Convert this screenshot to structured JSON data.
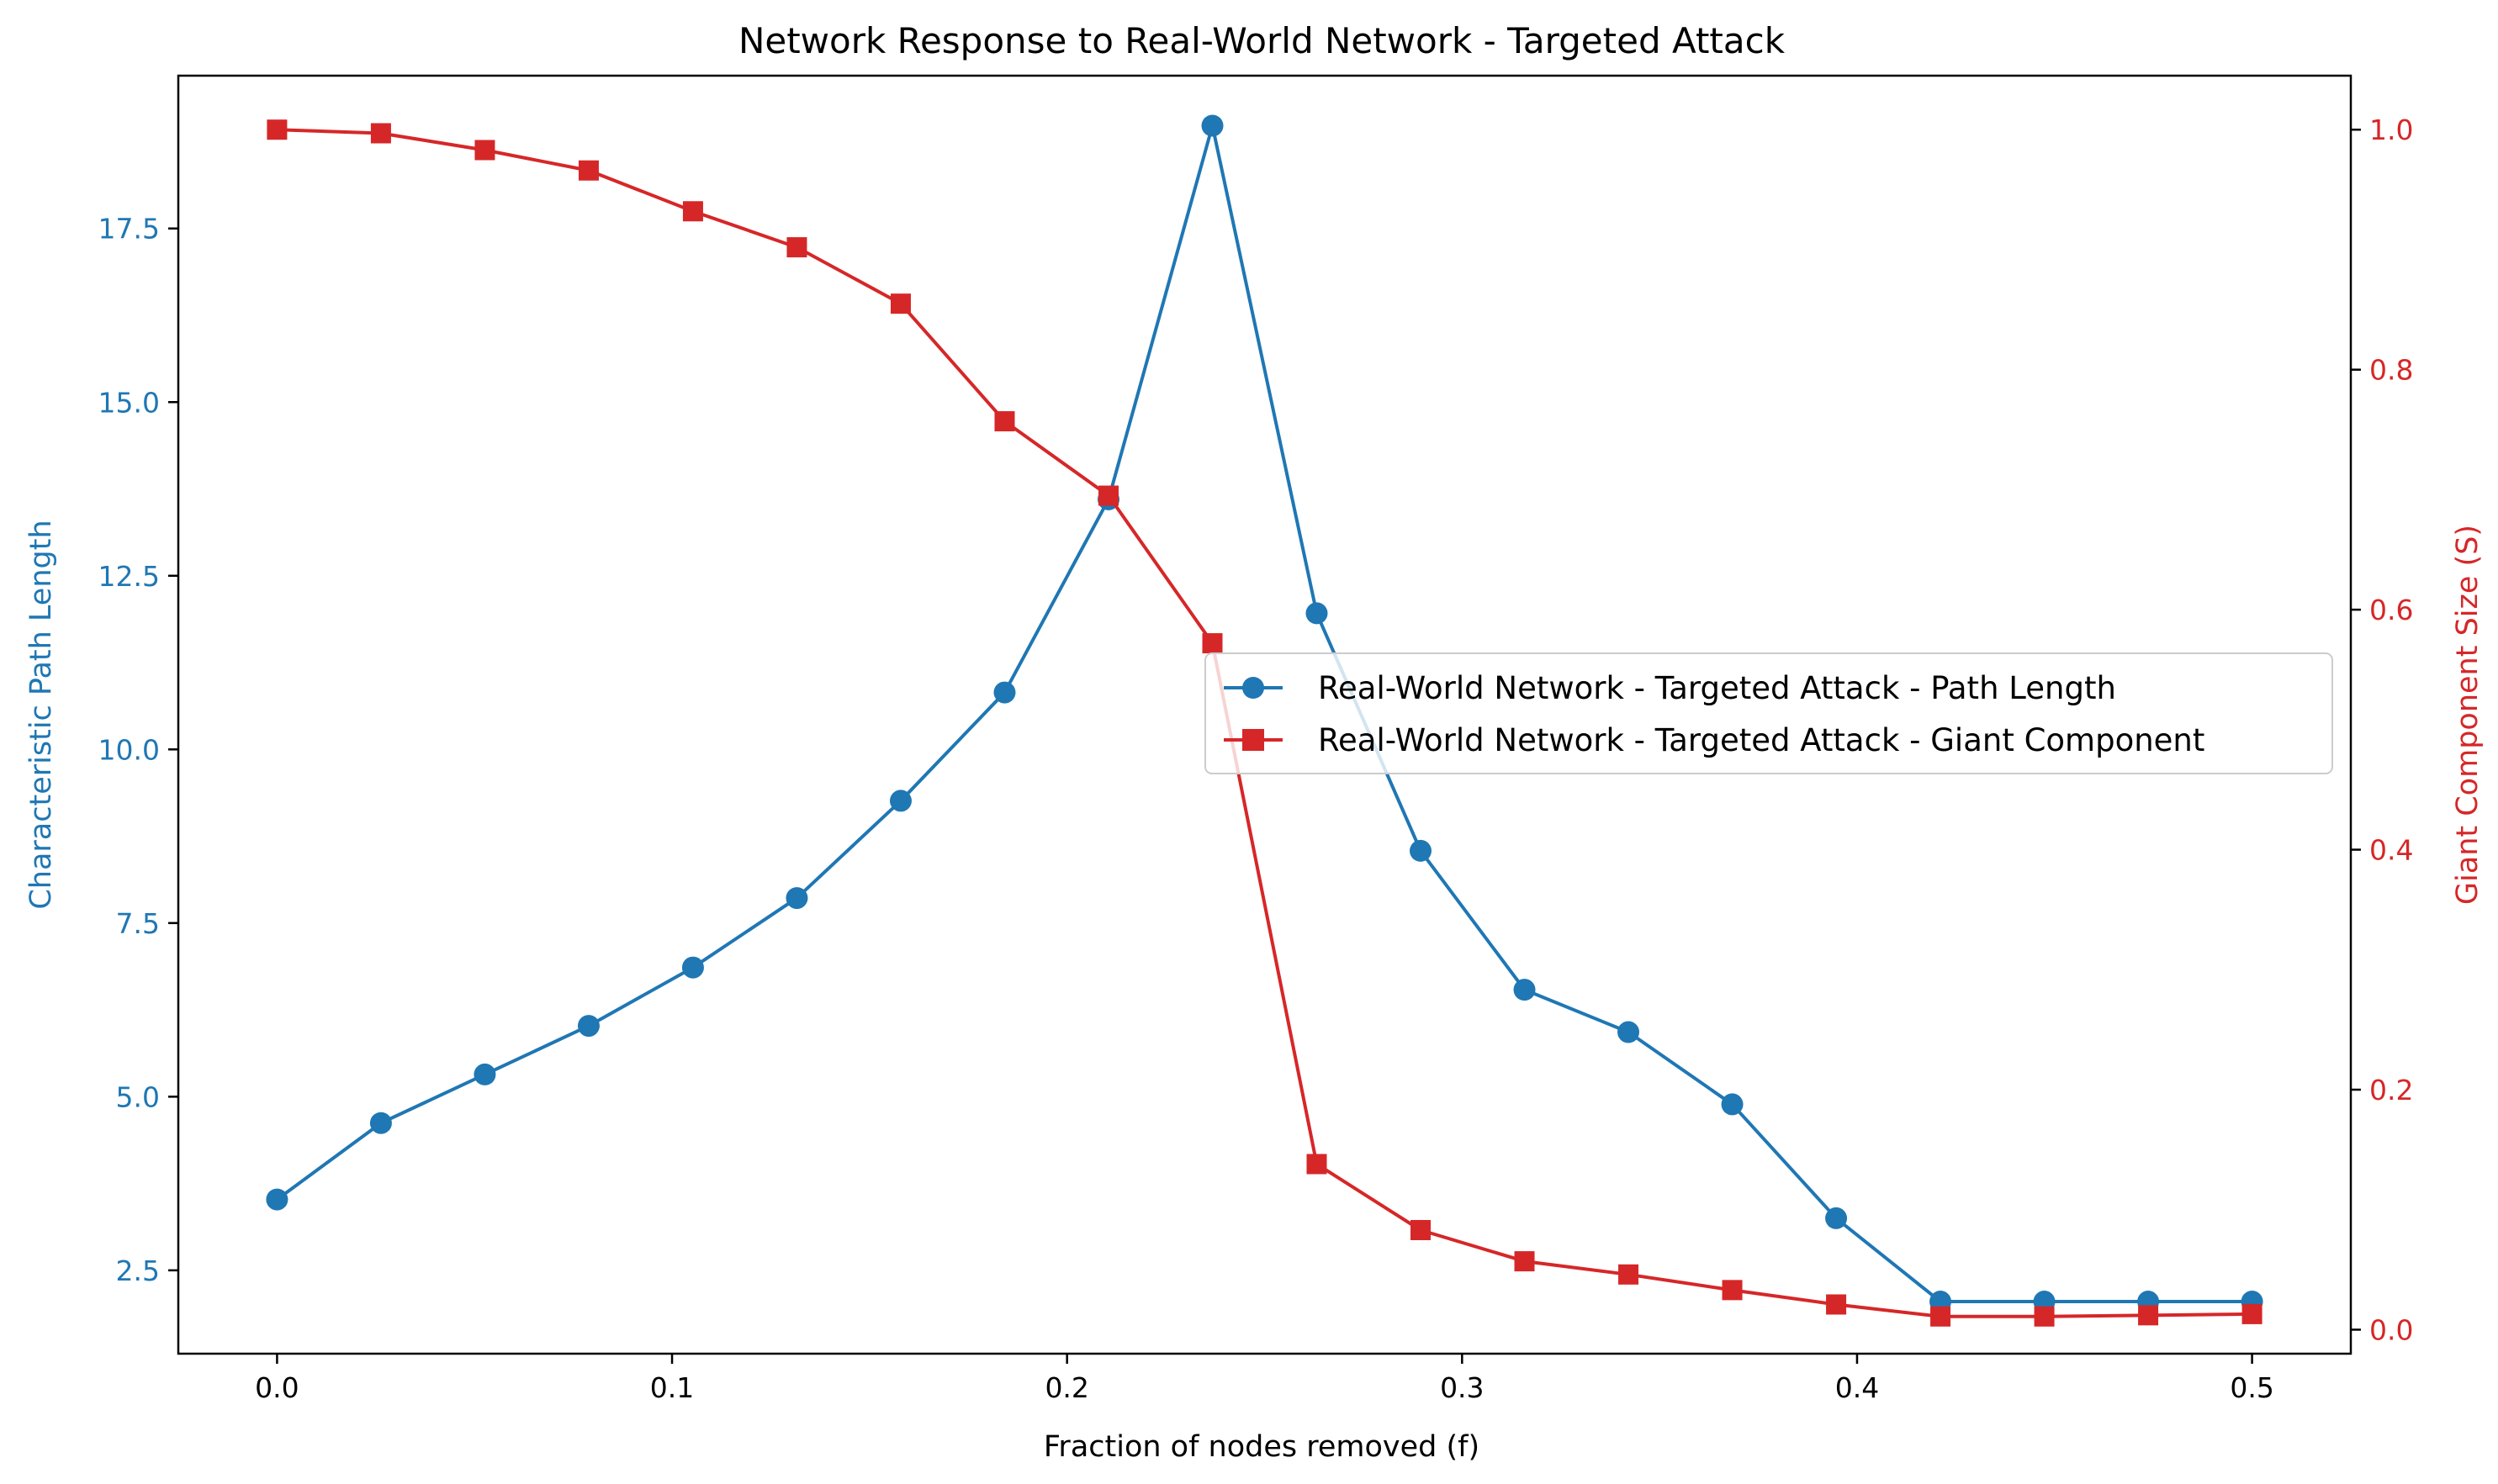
{
  "chart_data": {
    "type": "line",
    "title": "Network Response to Real-World Network - Targeted Attack",
    "xlabel": "Fraction of nodes removed (f)",
    "ylabel_left": "Characteristic Path Length",
    "ylabel_right": "Giant Component Size (S)",
    "xlim": [
      -0.025,
      0.525
    ],
    "ylim_left": [
      1.3,
      19.7
    ],
    "ylim_right": [
      -0.02,
      1.045
    ],
    "x_ticks": [
      "0.0",
      "0.1",
      "0.2",
      "0.3",
      "0.4",
      "0.5"
    ],
    "y_left_ticks": [
      "2.5",
      "5.0",
      "7.5",
      "10.0",
      "12.5",
      "15.0",
      "17.5"
    ],
    "y_right_ticks": [
      "0.0",
      "0.2",
      "0.4",
      "0.6",
      "0.8",
      "1.0"
    ],
    "grid": false,
    "legend_position": "center-right",
    "x": [
      0.0,
      0.0263,
      0.0526,
      0.0789,
      0.1053,
      0.1316,
      0.1579,
      0.1842,
      0.2105,
      0.2368,
      0.2632,
      0.2895,
      0.3158,
      0.3421,
      0.3684,
      0.3947,
      0.4211,
      0.4474,
      0.4737,
      0.5
    ],
    "series": [
      {
        "name": "Real-World Network - Targeted Attack - Path Length",
        "axis": "left",
        "color": "#1f77b4",
        "marker": "circle",
        "values": [
          3.52,
          4.62,
          5.32,
          6.02,
          6.86,
          7.86,
          9.26,
          10.82,
          13.6,
          18.98,
          11.96,
          8.54,
          6.54,
          5.93,
          4.89,
          3.25,
          2.05,
          2.05,
          2.05,
          2.05
        ]
      },
      {
        "name": "Real-World Network - Targeted Attack - Giant Component",
        "axis": "right",
        "color": "#d62728",
        "marker": "square",
        "values": [
          1.0,
          0.997,
          0.983,
          0.966,
          0.932,
          0.902,
          0.855,
          0.757,
          0.695,
          0.572,
          0.138,
          0.083,
          0.057,
          0.046,
          0.033,
          0.021,
          0.011,
          0.011,
          0.012,
          0.013
        ]
      }
    ]
  }
}
